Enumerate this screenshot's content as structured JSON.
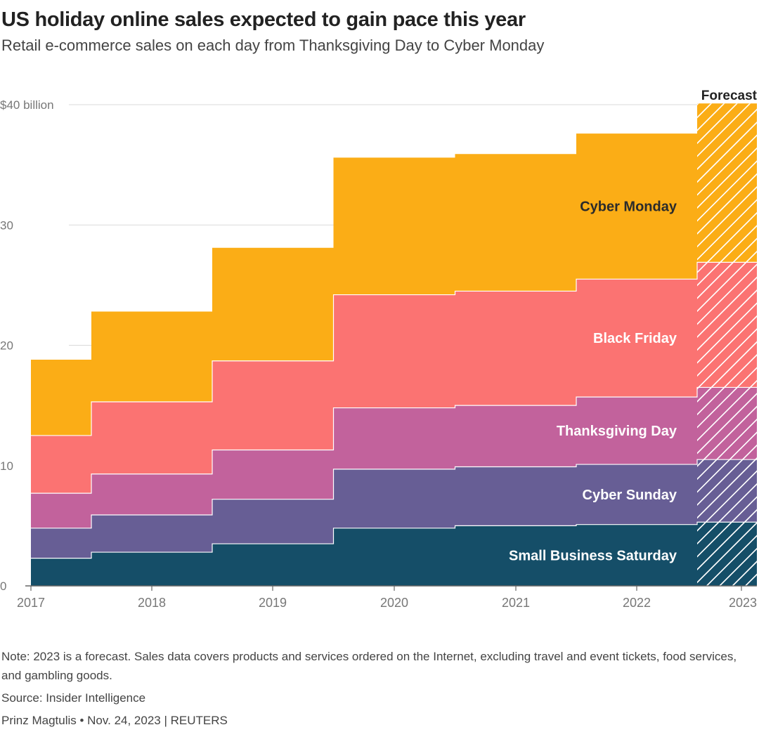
{
  "title": "US holiday online sales expected to gain pace this year",
  "subtitle": "Retail e-commerce sales on each day from Thanksgiving Day to Cyber Monday",
  "note": "Note: 2023 is a forecast. Sales data covers products and services ordered on the Internet, excluding travel and event tickets, food services, and gambling goods.",
  "source": "Source: Insider Intelligence",
  "credit": "Prinz Magtulis • Nov. 24, 2023 | REUTERS",
  "chart_data": {
    "type": "area",
    "stacked": true,
    "step": true,
    "categories": [
      "2017",
      "2018",
      "2019",
      "2020",
      "2021",
      "2022",
      "2023"
    ],
    "forecast_category": "2023",
    "forecast_label": "Forecast",
    "ylim": [
      0,
      40
    ],
    "yticks": [
      0,
      10,
      20,
      30,
      40
    ],
    "ytick_labels": [
      "0",
      "10",
      "20",
      "30",
      "$40 billion"
    ],
    "grid": true,
    "series": [
      {
        "name": "Small Business Saturday",
        "color": "#154e68",
        "label_color": "#ffffff",
        "values": [
          2.3,
          2.8,
          3.5,
          4.8,
          5.0,
          5.1,
          5.3
        ]
      },
      {
        "name": "Cyber Sunday",
        "color": "#675e95",
        "label_color": "#ffffff",
        "values": [
          2.5,
          3.1,
          3.7,
          4.9,
          4.9,
          5.0,
          5.2
        ]
      },
      {
        "name": "Thanksgiving Day",
        "color": "#c2629c",
        "label_color": "#ffffff",
        "values": [
          2.9,
          3.4,
          4.1,
          5.1,
          5.1,
          5.6,
          6.0
        ]
      },
      {
        "name": "Black Friday",
        "color": "#fb7372",
        "label_color": "#ffffff",
        "values": [
          4.8,
          6.0,
          7.4,
          9.4,
          9.5,
          9.8,
          10.4
        ]
      },
      {
        "name": "Cyber Monday",
        "color": "#fbad16",
        "label_color": "#2b2b2b",
        "values": [
          6.3,
          7.5,
          9.4,
          11.4,
          11.4,
          12.1,
          13.2
        ]
      }
    ]
  }
}
